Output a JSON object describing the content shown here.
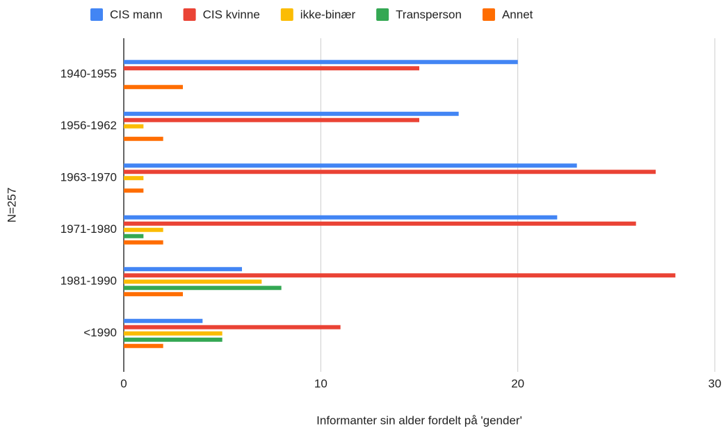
{
  "chart_data": {
    "type": "hbar",
    "x_label": "Informanter sin alder fordelt på 'gender'",
    "y_label": "N=257",
    "categories": [
      "1940-1955",
      "1956-1962",
      "1963-1970",
      "1971-1980",
      "1981-1990",
      "<1990"
    ],
    "series": [
      {
        "name": "CIS mann",
        "color": "#4285f4",
        "values": [
          20,
          17,
          23,
          22,
          6,
          4
        ]
      },
      {
        "name": "CIS kvinne",
        "color": "#ea4335",
        "values": [
          15,
          15,
          27,
          26,
          28,
          11
        ]
      },
      {
        "name": "ikke-binær",
        "color": "#fbbc04",
        "values": [
          0,
          1,
          1,
          2,
          7,
          5
        ]
      },
      {
        "name": "Transperson",
        "color": "#34a853",
        "values": [
          0,
          0,
          0,
          1,
          8,
          5
        ]
      },
      {
        "name": "Annet",
        "color": "#ff6d01",
        "values": [
          3,
          2,
          1,
          2,
          3,
          2
        ]
      }
    ],
    "xlim": [
      0,
      30
    ],
    "xticks": [
      0,
      10,
      20,
      30
    ],
    "grid": true,
    "legend": "top"
  }
}
